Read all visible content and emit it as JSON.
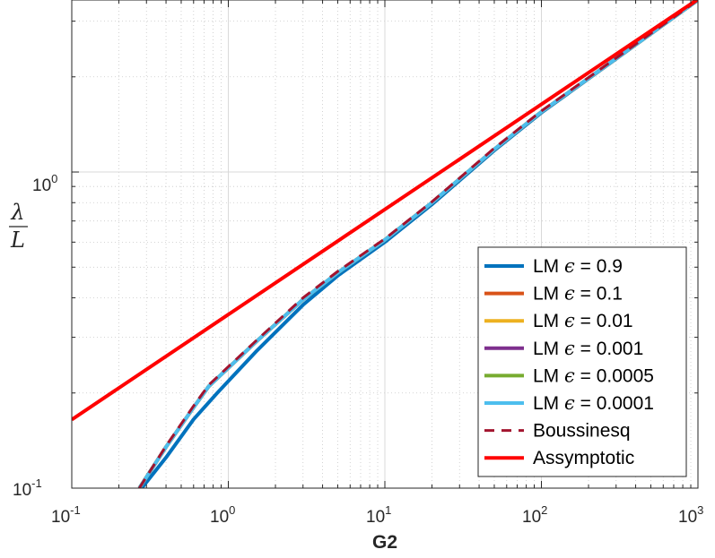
{
  "chart_data": {
    "type": "line",
    "title": "",
    "xlabel": "G2",
    "ylabel": {
      "numerator": "λ",
      "denominator": "L"
    },
    "xscale": "log",
    "yscale": "log",
    "xlim": [
      0.1,
      1000
    ],
    "ylim": [
      0.1,
      3.5
    ],
    "grid": true,
    "minor_grid": true,
    "legend_position": "bottom-right",
    "xticks": [
      {
        "base": "10",
        "exp": "-1",
        "value": 0.1
      },
      {
        "base": "10",
        "exp": "0",
        "value": 1
      },
      {
        "base": "10",
        "exp": "1",
        "value": 10
      },
      {
        "base": "10",
        "exp": "2",
        "value": 100
      },
      {
        "base": "10",
        "exp": "3",
        "value": 1000
      }
    ],
    "yticks": [
      {
        "base": "10",
        "exp": "-1",
        "value": 0.1
      },
      {
        "base": "10",
        "exp": "0",
        "value": 1
      }
    ],
    "series": [
      {
        "label_prefix": "LM ",
        "symbol": "ϵ",
        "label_suffix": " = 0.9",
        "color": "#0072BD",
        "style": "solid",
        "width": 4,
        "x": [
          0.28,
          0.4,
          0.6,
          0.85,
          1.5,
          3,
          5,
          10,
          20,
          50,
          100,
          1000
        ],
        "y": [
          0.1,
          0.125,
          0.165,
          0.2,
          0.27,
          0.38,
          0.47,
          0.6,
          0.79,
          1.17,
          1.54,
          3.5
        ]
      },
      {
        "label_prefix": "LM ",
        "symbol": "ϵ",
        "label_suffix": " = 0.1",
        "color": "#D95319",
        "style": "solid",
        "width": 4,
        "x": [
          0.27,
          0.4,
          0.6,
          0.75,
          1.5,
          3,
          5,
          10,
          20,
          50,
          100,
          1000
        ],
        "y": [
          0.1,
          0.135,
          0.18,
          0.21,
          0.29,
          0.395,
          0.48,
          0.61,
          0.8,
          1.18,
          1.55,
          3.5
        ]
      },
      {
        "label_prefix": "LM ",
        "symbol": "ϵ",
        "label_suffix": " = 0.01",
        "color": "#EDB120",
        "style": "solid",
        "width": 4,
        "x": [
          0.27,
          0.4,
          0.6,
          0.75,
          1.5,
          3,
          5,
          10,
          20,
          50,
          100,
          1000
        ],
        "y": [
          0.1,
          0.135,
          0.18,
          0.21,
          0.29,
          0.395,
          0.48,
          0.61,
          0.8,
          1.18,
          1.55,
          3.5
        ]
      },
      {
        "label_prefix": "LM ",
        "symbol": "ϵ",
        "label_suffix": " = 0.001",
        "color": "#7E2F8E",
        "style": "solid",
        "width": 4,
        "x": [
          0.27,
          0.4,
          0.6,
          0.75,
          1.5,
          3,
          5,
          10,
          20,
          50,
          100,
          1000
        ],
        "y": [
          0.1,
          0.135,
          0.18,
          0.21,
          0.29,
          0.395,
          0.48,
          0.61,
          0.8,
          1.18,
          1.55,
          3.5
        ]
      },
      {
        "label_prefix": "LM ",
        "symbol": "ϵ",
        "label_suffix": " = 0.0005",
        "color": "#77AC30",
        "style": "solid",
        "width": 4,
        "x": [
          0.27,
          0.4,
          0.6,
          0.75,
          1.5,
          3,
          5,
          10,
          20,
          50,
          100,
          1000
        ],
        "y": [
          0.1,
          0.135,
          0.18,
          0.21,
          0.29,
          0.395,
          0.48,
          0.61,
          0.8,
          1.18,
          1.55,
          3.5
        ]
      },
      {
        "label_prefix": "LM ",
        "symbol": "ϵ",
        "label_suffix": " = 0.0001",
        "color": "#4DBEEE",
        "style": "solid",
        "width": 4,
        "x": [
          0.27,
          0.4,
          0.6,
          0.75,
          1.5,
          3,
          5,
          10,
          20,
          50,
          100,
          1000
        ],
        "y": [
          0.1,
          0.135,
          0.18,
          0.21,
          0.29,
          0.395,
          0.48,
          0.61,
          0.8,
          1.18,
          1.55,
          3.5
        ]
      },
      {
        "label_prefix": "",
        "symbol": "",
        "label_suffix": "Boussinesq",
        "color": "#A2142F",
        "style": "dashed",
        "width": 3,
        "x": [
          0.27,
          0.4,
          0.6,
          0.75,
          1.5,
          3,
          5,
          10,
          20,
          50,
          100,
          1000
        ],
        "y": [
          0.1,
          0.136,
          0.182,
          0.212,
          0.292,
          0.4,
          0.485,
          0.615,
          0.805,
          1.19,
          1.56,
          3.5
        ]
      },
      {
        "label_prefix": "",
        "symbol": "",
        "label_suffix": "Assymptotic",
        "color": "#FF0000",
        "style": "solid",
        "width": 4,
        "x": [
          0.1,
          1000
        ],
        "y": [
          0.1647,
          3.52
        ]
      }
    ]
  }
}
